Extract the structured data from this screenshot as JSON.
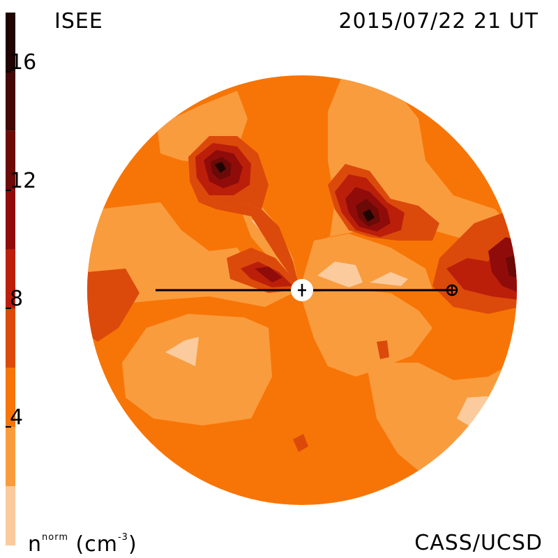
{
  "header": {
    "left_label": "ISEE",
    "right_label": "2015/07/22 21 UT"
  },
  "footer": {
    "unit_base": "n",
    "unit_sup": "norm",
    "unit_paren": "(cm",
    "unit_exp": "-3",
    "unit_close": ")",
    "credit": "CASS/UCSD"
  },
  "colorbar": {
    "bands": [
      {
        "from": 0,
        "to": 2,
        "color": "#fbcb9e"
      },
      {
        "from": 2,
        "to": 4,
        "color": "#f99c3e"
      },
      {
        "from": 4,
        "to": 6,
        "color": "#f77506"
      },
      {
        "from": 6,
        "to": 8,
        "color": "#db4a0b"
      },
      {
        "from": 8,
        "to": 10,
        "color": "#bb1f0a"
      },
      {
        "from": 10,
        "to": 12,
        "color": "#900c0a"
      },
      {
        "from": 12,
        "to": 14,
        "color": "#6b0a07"
      },
      {
        "from": 14,
        "to": 16,
        "color": "#430805"
      },
      {
        "from": 16,
        "to": 18,
        "color": "#1f0402"
      }
    ],
    "ticks": [
      {
        "value": 4,
        "label": "4"
      },
      {
        "value": 8,
        "label": "8"
      },
      {
        "value": 12,
        "label": "12"
      },
      {
        "value": 16,
        "label": "16"
      }
    ]
  },
  "map": {
    "sun_symbol": "sun-center-icon",
    "earth_symbol": "earth-icon",
    "colors": {
      "lightest": "#fbcb9e",
      "light": "#f99c3e",
      "base": "#f77506",
      "mid": "#db4a0b",
      "red": "#bb1f0a",
      "dark": "#900c0a",
      "darker": "#6b0a07",
      "darkest": "#1f0402"
    }
  }
}
